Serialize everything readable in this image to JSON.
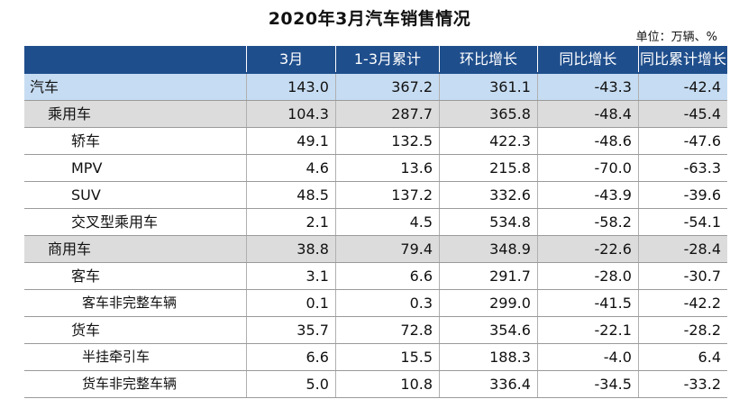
{
  "title": "2020年3月汽车销售情况",
  "unit": "单位：万辆、%",
  "headers": [
    "",
    "3月",
    "1-3月累计",
    "环比增长",
    "同比增长",
    "同比累计增长"
  ],
  "rows": [
    {
      "name": "汽车",
      "level": 0,
      "style": "total",
      "values": [
        "143.0",
        "367.2",
        "361.1",
        "-43.3",
        "-42.4"
      ]
    },
    {
      "name": "乘用车",
      "level": 1,
      "style": "group",
      "values": [
        "104.3",
        "287.7",
        "365.8",
        "-48.4",
        "-45.4"
      ]
    },
    {
      "name": "轿车",
      "level": 2,
      "style": "plain",
      "values": [
        "49.1",
        "132.5",
        "422.3",
        "-48.6",
        "-47.6"
      ]
    },
    {
      "name": "MPV",
      "level": 2,
      "style": "plain",
      "values": [
        "4.6",
        "13.6",
        "215.8",
        "-70.0",
        "-63.3"
      ]
    },
    {
      "name": "SUV",
      "level": 2,
      "style": "plain",
      "values": [
        "48.5",
        "137.2",
        "332.6",
        "-43.9",
        "-39.6"
      ]
    },
    {
      "name": "交叉型乘用车",
      "level": 2,
      "style": "plain",
      "values": [
        "2.1",
        "4.5",
        "534.8",
        "-58.2",
        "-54.1"
      ]
    },
    {
      "name": "商用车",
      "level": 1,
      "style": "group",
      "values": [
        "38.8",
        "79.4",
        "348.9",
        "-22.6",
        "-28.4"
      ]
    },
    {
      "name": "客车",
      "level": 2,
      "style": "plain",
      "values": [
        "3.1",
        "6.6",
        "291.7",
        "-28.0",
        "-30.7"
      ]
    },
    {
      "name": "客车非完整车辆",
      "level": 3,
      "style": "plain",
      "values": [
        "0.1",
        "0.3",
        "299.0",
        "-41.5",
        "-42.2"
      ]
    },
    {
      "name": "货车",
      "level": 2,
      "style": "plain",
      "values": [
        "35.7",
        "72.8",
        "354.6",
        "-22.1",
        "-28.2"
      ]
    },
    {
      "name": "半挂牵引车",
      "level": 3,
      "style": "plain",
      "values": [
        "6.6",
        "15.5",
        "188.3",
        "-4.0",
        "6.4"
      ]
    },
    {
      "name": "货车非完整车辆",
      "level": 3,
      "style": "plain",
      "values": [
        "5.0",
        "10.8",
        "336.4",
        "-34.5",
        "-33.2"
      ]
    }
  ]
}
